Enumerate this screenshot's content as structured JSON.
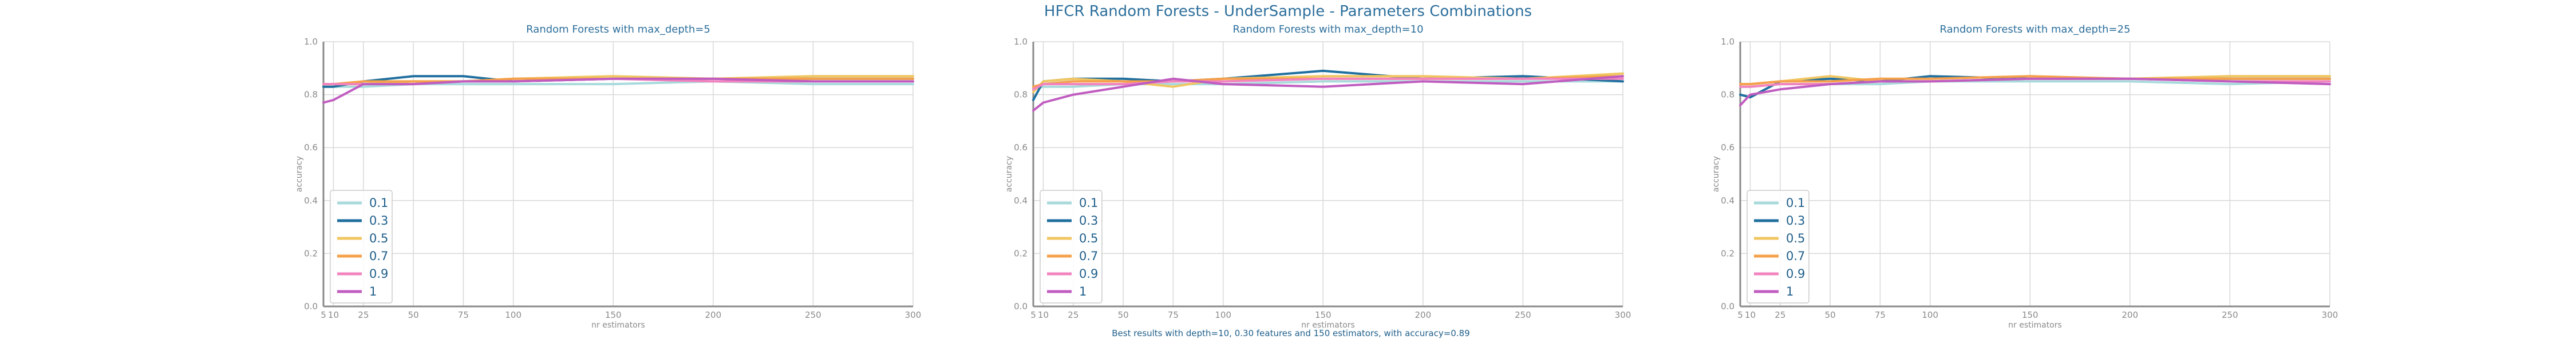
{
  "figure": {
    "title": "HFCR Random Forests - UnderSample - Parameters Combinations",
    "footer": "Best results with depth=10, 0.30 features and 150 estimators, with accuracy=0.89"
  },
  "chart_data": [
    {
      "type": "line",
      "title": "Random Forests with max_depth=5",
      "xlabel": "nr estimators",
      "ylabel": "accuracy",
      "ylim": [
        0.0,
        1.0
      ],
      "xlim": [
        5,
        300
      ],
      "x_ticks": [
        5,
        10,
        25,
        50,
        75,
        100,
        150,
        200,
        250,
        300
      ],
      "y_ticks": [
        0.0,
        0.2,
        0.4,
        0.6,
        0.8,
        1.0
      ],
      "grid": true,
      "legend_position": "lower-left",
      "x": [
        5,
        10,
        25,
        50,
        75,
        100,
        150,
        200,
        250,
        300
      ],
      "series": [
        {
          "name": "0.1",
          "color": "#a8dadc",
          "values": [
            0.83,
            0.83,
            0.83,
            0.84,
            0.84,
            0.84,
            0.84,
            0.85,
            0.84,
            0.84
          ]
        },
        {
          "name": "0.3",
          "color": "#1f6f9f",
          "values": [
            0.83,
            0.83,
            0.85,
            0.87,
            0.87,
            0.85,
            0.86,
            0.86,
            0.86,
            0.86
          ]
        },
        {
          "name": "0.5",
          "color": "#f0c661",
          "values": [
            0.84,
            0.84,
            0.84,
            0.85,
            0.85,
            0.86,
            0.87,
            0.86,
            0.87,
            0.87
          ]
        },
        {
          "name": "0.7",
          "color": "#f5a04a",
          "values": [
            0.84,
            0.84,
            0.85,
            0.85,
            0.85,
            0.86,
            0.86,
            0.86,
            0.86,
            0.86
          ]
        },
        {
          "name": "0.9",
          "color": "#f283be",
          "values": [
            0.84,
            0.84,
            0.84,
            0.84,
            0.85,
            0.85,
            0.86,
            0.85,
            0.85,
            0.85
          ]
        },
        {
          "name": "1",
          "color": "#c05cc0",
          "values": [
            0.77,
            0.78,
            0.84,
            0.84,
            0.85,
            0.85,
            0.86,
            0.86,
            0.85,
            0.85
          ]
        }
      ]
    },
    {
      "type": "line",
      "title": "Random Forests with max_depth=10",
      "xlabel": "nr estimators",
      "ylabel": "accuracy",
      "ylim": [
        0.0,
        1.0
      ],
      "xlim": [
        5,
        300
      ],
      "x_ticks": [
        5,
        10,
        25,
        50,
        75,
        100,
        150,
        200,
        250,
        300
      ],
      "y_ticks": [
        0.0,
        0.2,
        0.4,
        0.6,
        0.8,
        1.0
      ],
      "grid": true,
      "legend_position": "lower-left",
      "x": [
        5,
        10,
        25,
        50,
        75,
        100,
        150,
        200,
        250,
        300
      ],
      "series": [
        {
          "name": "0.1",
          "color": "#a8dadc",
          "values": [
            0.82,
            0.83,
            0.83,
            0.84,
            0.84,
            0.84,
            0.85,
            0.85,
            0.85,
            0.85
          ]
        },
        {
          "name": "0.3",
          "color": "#1f6f9f",
          "values": [
            0.78,
            0.85,
            0.86,
            0.86,
            0.85,
            0.86,
            0.89,
            0.86,
            0.87,
            0.85
          ]
        },
        {
          "name": "0.5",
          "color": "#f0c661",
          "values": [
            0.81,
            0.85,
            0.86,
            0.85,
            0.83,
            0.86,
            0.87,
            0.87,
            0.86,
            0.88
          ]
        },
        {
          "name": "0.7",
          "color": "#f5a04a",
          "values": [
            0.83,
            0.84,
            0.85,
            0.85,
            0.85,
            0.86,
            0.86,
            0.86,
            0.86,
            0.87
          ]
        },
        {
          "name": "0.9",
          "color": "#f283be",
          "values": [
            0.82,
            0.84,
            0.84,
            0.84,
            0.85,
            0.85,
            0.86,
            0.86,
            0.86,
            0.86
          ]
        },
        {
          "name": "1",
          "color": "#c05cc0",
          "values": [
            0.74,
            0.77,
            0.8,
            0.83,
            0.86,
            0.84,
            0.83,
            0.85,
            0.84,
            0.87
          ]
        }
      ]
    },
    {
      "type": "line",
      "title": "Random Forests with max_depth=25",
      "xlabel": "nr estimators",
      "ylabel": "accuracy",
      "ylim": [
        0.0,
        1.0
      ],
      "xlim": [
        5,
        300
      ],
      "x_ticks": [
        5,
        10,
        25,
        50,
        75,
        100,
        150,
        200,
        250,
        300
      ],
      "y_ticks": [
        0.0,
        0.2,
        0.4,
        0.6,
        0.8,
        1.0
      ],
      "grid": true,
      "legend_position": "lower-left",
      "x": [
        5,
        10,
        25,
        50,
        75,
        100,
        150,
        200,
        250,
        300
      ],
      "series": [
        {
          "name": "0.1",
          "color": "#a8dadc",
          "values": [
            0.83,
            0.83,
            0.84,
            0.84,
            0.84,
            0.85,
            0.85,
            0.85,
            0.84,
            0.85
          ]
        },
        {
          "name": "0.3",
          "color": "#1f6f9f",
          "values": [
            0.8,
            0.79,
            0.85,
            0.86,
            0.85,
            0.87,
            0.86,
            0.86,
            0.86,
            0.86
          ]
        },
        {
          "name": "0.5",
          "color": "#f0c661",
          "values": [
            0.84,
            0.84,
            0.85,
            0.87,
            0.85,
            0.85,
            0.86,
            0.86,
            0.87,
            0.87
          ]
        },
        {
          "name": "0.7",
          "color": "#f5a04a",
          "values": [
            0.84,
            0.84,
            0.85,
            0.85,
            0.86,
            0.86,
            0.87,
            0.86,
            0.86,
            0.86
          ]
        },
        {
          "name": "0.9",
          "color": "#f283be",
          "values": [
            0.83,
            0.83,
            0.84,
            0.84,
            0.85,
            0.85,
            0.86,
            0.86,
            0.85,
            0.85
          ]
        },
        {
          "name": "1",
          "color": "#c05cc0",
          "values": [
            0.76,
            0.8,
            0.82,
            0.84,
            0.85,
            0.85,
            0.86,
            0.86,
            0.85,
            0.84
          ]
        }
      ]
    }
  ]
}
